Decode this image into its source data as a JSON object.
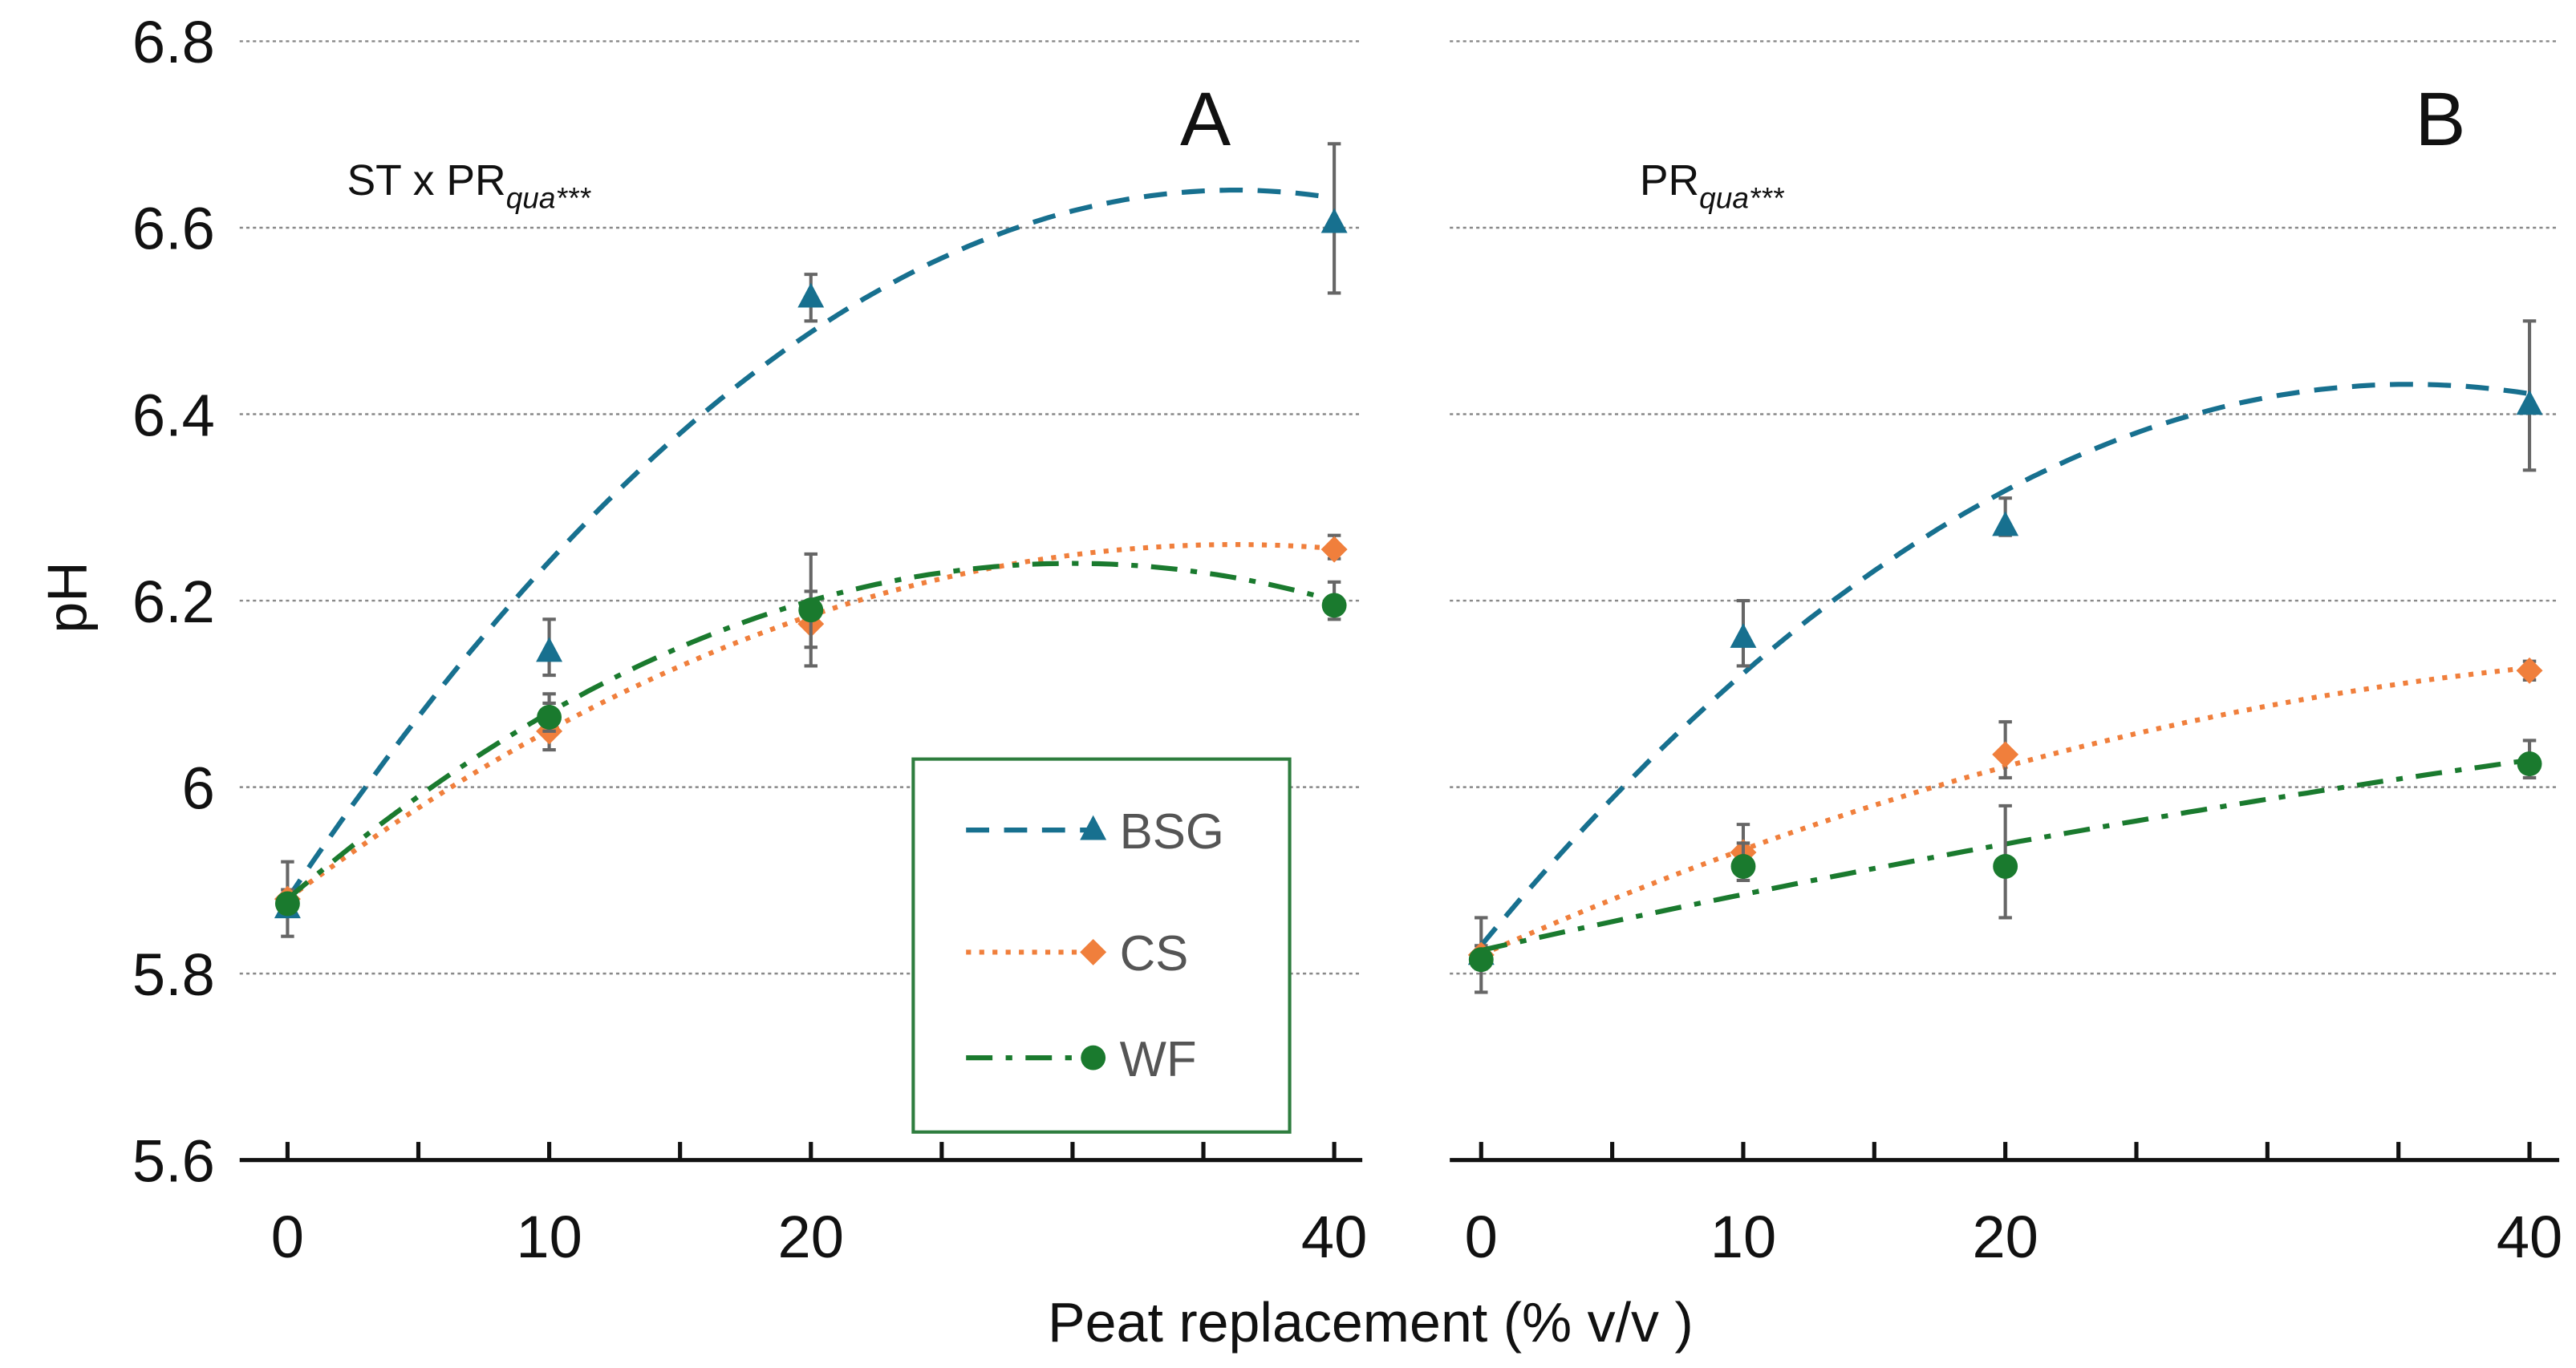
{
  "chart_data": {
    "type": "line",
    "ylabel": "pH",
    "xlabel": "Peat replacement (% v/v )",
    "ylim": [
      5.6,
      6.8
    ],
    "yticks": [
      "5.6",
      "5.8",
      "6",
      "6.2",
      "6.4",
      "6.6",
      "6.8"
    ],
    "ytick_values": [
      5.6,
      5.8,
      6.0,
      6.2,
      6.4,
      6.6,
      6.8
    ],
    "xlim": [
      0,
      40
    ],
    "xticks": [
      "0",
      "10",
      "20",
      "40"
    ],
    "xtick_values": [
      0,
      10,
      20,
      40
    ],
    "grid": "horizontal dotted",
    "legend": {
      "placement": "inside panel A, lower-right",
      "entries": [
        {
          "label": "BSG",
          "color": "#17708f",
          "marker": "triangle",
          "dash": "dashed"
        },
        {
          "label": "CS",
          "color": "#f07f3c",
          "marker": "diamond",
          "dash": "dotted"
        },
        {
          "label": "WF",
          "color": "#1a7a2e",
          "marker": "circle",
          "dash": "dash-dot"
        }
      ]
    },
    "panels": [
      {
        "label": "A",
        "annotation_main": "ST x PR",
        "annotation_sub": "qua",
        "annotation_sig": "***",
        "x": [
          0,
          10,
          20,
          40
        ],
        "series": [
          {
            "name": "BSG",
            "values": [
              5.87,
              6.145,
              6.525,
              6.605
            ],
            "err_low": [
              5.84,
              6.12,
              6.5,
              6.53
            ],
            "err_high": [
              5.92,
              6.18,
              6.55,
              6.69
            ],
            "fit": [
              5.88,
              0.042,
              -0.00058
            ]
          },
          {
            "name": "CS",
            "values": [
              5.88,
              6.06,
              6.175,
              6.255
            ],
            "err_low": [
              5.87,
              6.04,
              6.13,
              6.245
            ],
            "err_high": [
              5.89,
              6.09,
              6.25,
              6.27
            ],
            "fit": [
              5.88,
              0.021,
              -0.00029
            ]
          },
          {
            "name": "WF",
            "values": [
              5.875,
              6.075,
              6.19,
              6.195
            ],
            "err_low": [
              5.865,
              6.06,
              6.15,
              6.18
            ],
            "err_high": [
              5.885,
              6.1,
              6.21,
              6.22
            ],
            "fit": [
              5.88,
              0.024,
              -0.0004
            ]
          }
        ]
      },
      {
        "label": "B",
        "annotation_main": "PR",
        "annotation_sub": "qua",
        "annotation_sig": "***",
        "x": [
          0,
          10,
          20,
          40
        ],
        "series": [
          {
            "name": "BSG",
            "values": [
              5.82,
              6.16,
              6.28,
              6.41
            ],
            "err_low": [
              5.78,
              6.13,
              6.27,
              6.34
            ],
            "err_high": [
              5.86,
              6.2,
              6.31,
              6.5
            ],
            "fit": [
              5.83,
              0.034,
              -0.00048
            ]
          },
          {
            "name": "CS",
            "values": [
              5.82,
              5.93,
              6.035,
              6.125
            ],
            "err_low": [
              5.81,
              5.91,
              6.01,
              6.115
            ],
            "err_high": [
              5.83,
              5.96,
              6.07,
              6.135
            ],
            "fit": [
              5.82,
              0.0125,
              -0.00012
            ]
          },
          {
            "name": "WF",
            "values": [
              5.815,
              5.915,
              5.915,
              6.025
            ],
            "err_low": [
              5.805,
              5.9,
              5.86,
              6.01
            ],
            "err_high": [
              5.825,
              5.94,
              5.98,
              6.05
            ],
            "fit": [
              5.825,
              0.0063,
              -3e-05
            ]
          }
        ]
      }
    ]
  }
}
